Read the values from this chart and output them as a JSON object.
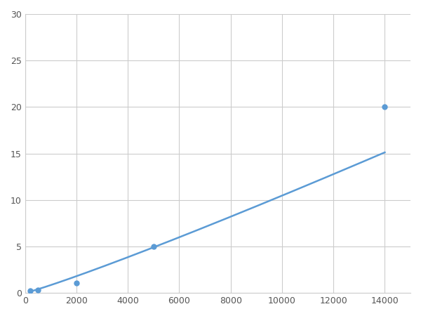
{
  "x_points": [
    200,
    500,
    2000,
    5000,
    14000
  ],
  "y_points": [
    0.2,
    0.35,
    1.1,
    5.0,
    20.0
  ],
  "line_color": "#5b9bd5",
  "marker_color": "#5b9bd5",
  "marker_size": 6,
  "line_width": 1.8,
  "xlim": [
    0,
    15000
  ],
  "ylim": [
    0,
    30
  ],
  "xticks": [
    0,
    2000,
    4000,
    6000,
    8000,
    10000,
    12000,
    14000
  ],
  "xticklabels": [
    "0",
    "2000",
    "4000",
    "6000",
    "8000",
    "10000",
    "12000",
    "14000"
  ],
  "yticks": [
    0,
    5,
    10,
    15,
    20,
    25,
    30
  ],
  "grid_color": "#cccccc",
  "background_color": "#ffffff",
  "figsize": [
    6.0,
    4.5
  ],
  "dpi": 100
}
